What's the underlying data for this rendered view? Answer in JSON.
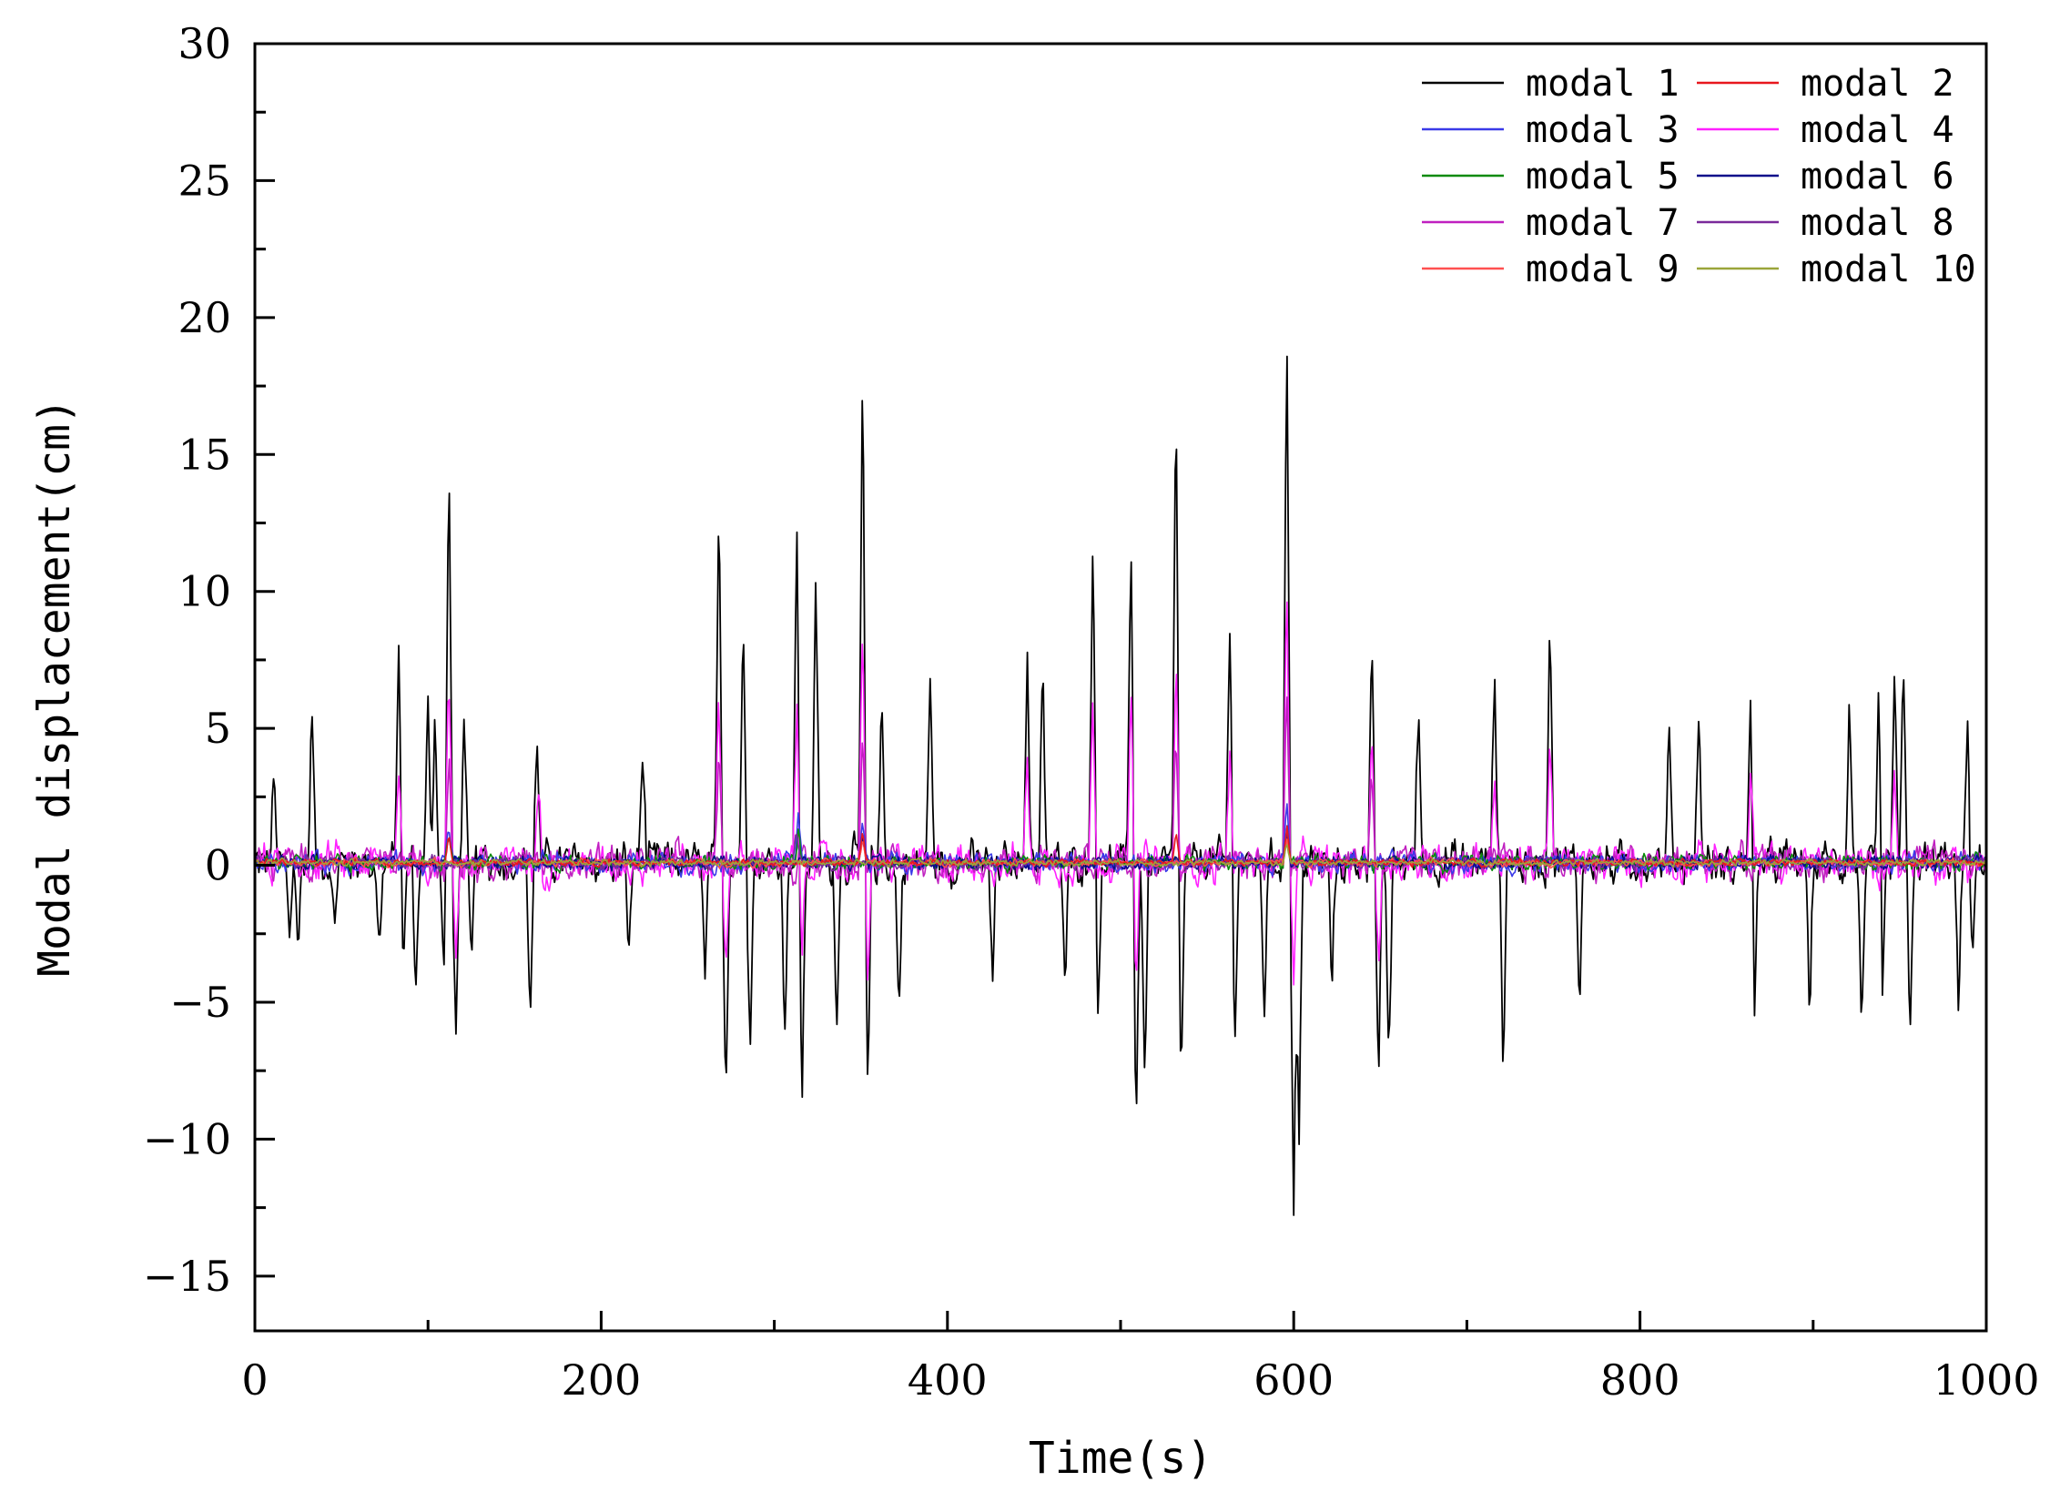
{
  "chart_data": {
    "type": "line",
    "title": "",
    "xlabel": "Time(s)",
    "ylabel": "Modal displacement(cm)",
    "xlim": [
      0,
      1000
    ],
    "ylim": [
      -17,
      30
    ],
    "xticks": [
      0,
      200,
      400,
      600,
      800,
      1000
    ],
    "xtick_labels": [
      "0",
      "200",
      "400",
      "600",
      "800",
      "1000"
    ],
    "yticks": [
      -15,
      -10,
      -5,
      0,
      5,
      10,
      15,
      20,
      25,
      30
    ],
    "ytick_labels": [
      "−15",
      "−10",
      "−5",
      "0",
      "5",
      "10",
      "15",
      "20",
      "25",
      "30"
    ],
    "grid": false,
    "legend_position": "top-right",
    "legend_columns": 2,
    "series": [
      {
        "name": "modal 1",
        "color": "#000000",
        "amplitude": 1.0,
        "peaks": [
          [
            11,
            3.2
          ],
          [
            20,
            -3.0
          ],
          [
            25,
            -3.2
          ],
          [
            33,
            6.0
          ],
          [
            46,
            -2.8
          ],
          [
            72,
            -3.4
          ],
          [
            83,
            8.1
          ],
          [
            86,
            -3.5
          ],
          [
            93,
            -4.8
          ],
          [
            100,
            5.6
          ],
          [
            104,
            5.6
          ],
          [
            109,
            -4.2
          ],
          [
            112,
            15.5
          ],
          [
            116,
            -7.0
          ],
          [
            121,
            5.8
          ],
          [
            125,
            -4.5
          ],
          [
            159,
            -5.8
          ],
          [
            163,
            4.8
          ],
          [
            216,
            -3.5
          ],
          [
            224,
            4.3
          ],
          [
            260,
            -4.5
          ],
          [
            268,
            13.3
          ],
          [
            272,
            -8.2
          ],
          [
            282,
            9.0
          ],
          [
            286,
            -6.0
          ],
          [
            306,
            -6.0
          ],
          [
            313,
            12.2
          ],
          [
            316,
            -9.0
          ],
          [
            324,
            10.3
          ],
          [
            336,
            -6.0
          ],
          [
            351,
            18.7
          ],
          [
            354,
            -8.9
          ],
          [
            362,
            6.3
          ],
          [
            372,
            -5.8
          ],
          [
            390,
            7.1
          ],
          [
            426,
            -4.8
          ],
          [
            446,
            8.0
          ],
          [
            455,
            8.1
          ],
          [
            468,
            -4.8
          ],
          [
            484,
            12.9
          ],
          [
            487,
            -5.8
          ],
          [
            506,
            12.3
          ],
          [
            509,
            -10.0
          ],
          [
            514,
            -8.2
          ],
          [
            532,
            17.4
          ],
          [
            535,
            -8.5
          ],
          [
            563,
            9.0
          ],
          [
            566,
            -6.5
          ],
          [
            583,
            -5.5
          ],
          [
            596,
            20.7
          ],
          [
            600,
            -12.9
          ],
          [
            603,
            -10.7
          ],
          [
            622,
            -5.0
          ],
          [
            645,
            8.8
          ],
          [
            649,
            -9.0
          ],
          [
            655,
            -8.0
          ],
          [
            672,
            6.2
          ],
          [
            716,
            7.6
          ],
          [
            721,
            -7.4
          ],
          [
            748,
            10.1
          ],
          [
            765,
            -4.8
          ],
          [
            817,
            4.9
          ],
          [
            834,
            5.6
          ],
          [
            864,
            7.0
          ],
          [
            866,
            -6.8
          ],
          [
            898,
            -5.5
          ],
          [
            921,
            6.5
          ],
          [
            928,
            -6.2
          ],
          [
            938,
            6.6
          ],
          [
            940,
            -6.2
          ],
          [
            947,
            6.6
          ],
          [
            952,
            7.5
          ],
          [
            956,
            -6.8
          ],
          [
            984,
            -5.8
          ],
          [
            989,
            5.3
          ],
          [
            992,
            -4.2
          ]
        ]
      },
      {
        "name": "modal 2",
        "color": "#e8171d",
        "amplitude": 0.16,
        "peaks": [
          [
            112,
            1.0
          ],
          [
            351,
            1.2
          ],
          [
            532,
            1.1
          ],
          [
            596,
            1.4
          ]
        ]
      },
      {
        "name": "modal 3",
        "color": "#3a3ae8",
        "amplitude": 0.45,
        "peaks": [
          [
            112,
            1.6
          ],
          [
            314,
            1.8
          ],
          [
            351,
            1.5
          ],
          [
            596,
            2.0
          ]
        ]
      },
      {
        "name": "modal 4",
        "color": "#ff20ff",
        "amplitude": 0.9,
        "peaks": [
          [
            83,
            3.8
          ],
          [
            112,
            7.0
          ],
          [
            116,
            -3.5
          ],
          [
            164,
            2.8
          ],
          [
            268,
            6.4
          ],
          [
            272,
            -4.2
          ],
          [
            313,
            6.1
          ],
          [
            316,
            -3.8
          ],
          [
            351,
            8.5
          ],
          [
            354,
            -4.0
          ],
          [
            446,
            3.8
          ],
          [
            484,
            5.9
          ],
          [
            506,
            6.2
          ],
          [
            509,
            -4.5
          ],
          [
            532,
            7.2
          ],
          [
            563,
            4.2
          ],
          [
            596,
            10.3
          ],
          [
            600,
            -4.8
          ],
          [
            645,
            5.4
          ],
          [
            649,
            -4.0
          ],
          [
            716,
            3.2
          ],
          [
            748,
            4.8
          ],
          [
            864,
            3.4
          ],
          [
            947,
            3.2
          ]
        ]
      },
      {
        "name": "modal 5",
        "color": "#0a8a0a",
        "amplitude": 0.35,
        "peaks": [
          [
            112,
            1.2
          ],
          [
            314,
            1.3
          ],
          [
            596,
            1.5
          ]
        ]
      },
      {
        "name": "modal 6",
        "color": "#0b0b8a",
        "amplitude": 0.3,
        "peaks": [
          [
            351,
            1.0
          ],
          [
            596,
            1.1
          ]
        ]
      },
      {
        "name": "modal 7",
        "color": "#c020c0",
        "amplitude": 0.8,
        "peaks": [
          [
            112,
            4.6
          ],
          [
            268,
            4.2
          ],
          [
            351,
            5.5
          ],
          [
            532,
            4.8
          ],
          [
            596,
            7.0
          ],
          [
            645,
            3.6
          ]
        ]
      },
      {
        "name": "modal 8",
        "color": "#7a2a9a",
        "amplitude": 0.3,
        "peaks": [
          [
            313,
            1.2
          ],
          [
            596,
            1.3
          ]
        ]
      },
      {
        "name": "modal 9",
        "color": "#ff5050",
        "amplitude": 0.18,
        "peaks": [
          [
            351,
            0.8
          ],
          [
            596,
            0.9
          ]
        ]
      },
      {
        "name": "modal 10",
        "color": "#9aa53a",
        "amplitude": 0.15,
        "peaks": [
          [
            596,
            0.7
          ]
        ]
      }
    ]
  }
}
